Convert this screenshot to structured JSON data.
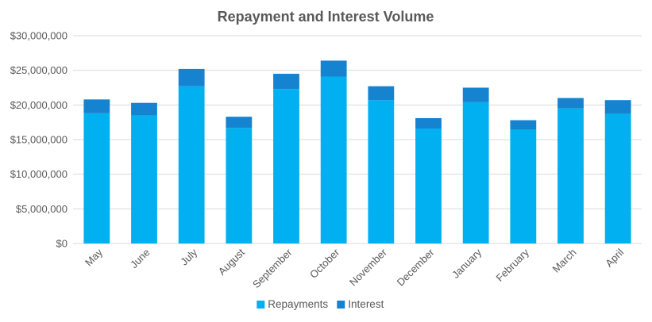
{
  "chart_data": {
    "type": "bar",
    "stacked": true,
    "title": "Repayment and Interest Volume",
    "xlabel": "",
    "ylabel": "",
    "categories": [
      "May",
      "June",
      "July",
      "August",
      "September",
      "October",
      "November",
      "December",
      "January",
      "February",
      "March",
      "April"
    ],
    "series": [
      {
        "name": "Repayments",
        "color": "#00B0F0",
        "values": [
          18800000,
          18500000,
          22700000,
          16700000,
          22300000,
          24100000,
          20700000,
          16600000,
          20400000,
          16400000,
          19500000,
          18700000
        ]
      },
      {
        "name": "Interest",
        "color": "#1583CF",
        "values": [
          2000000,
          1800000,
          2500000,
          1600000,
          2200000,
          2300000,
          2000000,
          1500000,
          2100000,
          1400000,
          1500000,
          2000000
        ]
      }
    ],
    "ylim": [
      0,
      30000000
    ],
    "yticks": [
      0,
      5000000,
      10000000,
      15000000,
      20000000,
      25000000,
      30000000
    ],
    "ytick_labels": [
      "$0",
      "$5,000,000",
      "$10,000,000",
      "$15,000,000",
      "$20,000,000",
      "$25,000,000",
      "$30,000,000"
    ],
    "grid": true,
    "legend": "bottom"
  }
}
